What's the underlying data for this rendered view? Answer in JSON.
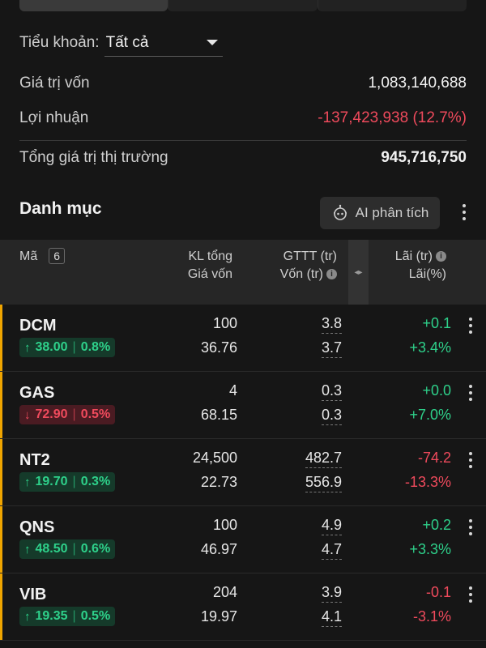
{
  "sub_account": {
    "label": "Tiểu khoản:",
    "value": "Tất cả"
  },
  "summary": {
    "capital_label": "Giá trị vốn",
    "capital_value": "1,083,140,688",
    "profit_label": "Lợi nhuận",
    "profit_value": "-137,423,938 (12.7%)",
    "market_value_label": "Tổng giá trị thị trường",
    "market_value_value": "945,716,750"
  },
  "portfolio": {
    "title": "Danh mục",
    "ai_button_label": "AI phân tích"
  },
  "table_header": {
    "code_label": "Mã",
    "count": "6",
    "qty_label": "KL tổng",
    "cost_label": "Giá vốn",
    "mv_label": "GTTT (tr)",
    "cap_label": "Vốn (tr)",
    "pnl_label": "Lãi (tr)",
    "pct_label": "Lãi(%)"
  },
  "rows": [
    {
      "ticker": "DCM",
      "direction": "up",
      "price": "38.00",
      "change": "0.8%",
      "qty": "100",
      "cost": "36.76",
      "market_value": "3.8",
      "capital": "3.7",
      "pnl": "+0.1",
      "pnl_pct": "+3.4%"
    },
    {
      "ticker": "GAS",
      "direction": "down",
      "price": "72.90",
      "change": "0.5%",
      "qty": "4",
      "cost": "68.15",
      "market_value": "0.3",
      "capital": "0.3",
      "pnl": "+0.0",
      "pnl_pct": "+7.0%"
    },
    {
      "ticker": "NT2",
      "direction": "up",
      "price": "19.70",
      "change": "0.3%",
      "qty": "24,500",
      "cost": "22.73",
      "market_value": "482.7",
      "capital": "556.9",
      "pnl": "-74.2",
      "pnl_pct": "-13.3%"
    },
    {
      "ticker": "QNS",
      "direction": "up",
      "price": "48.50",
      "change": "0.6%",
      "qty": "100",
      "cost": "46.97",
      "market_value": "4.9",
      "capital": "4.7",
      "pnl": "+0.2",
      "pnl_pct": "+3.3%"
    },
    {
      "ticker": "VIB",
      "direction": "up",
      "price": "19.35",
      "change": "0.5%",
      "qty": "204",
      "cost": "19.97",
      "market_value": "3.9",
      "capital": "4.1",
      "pnl": "-0.1",
      "pnl_pct": "-3.1%"
    }
  ],
  "colors": {
    "accent": "#f0a500",
    "up": "#2ed08a",
    "down": "#ef4a5c"
  },
  "icons": {
    "dropdown": "caret-down-icon",
    "ai": "robot-icon",
    "more": "more-vertical-icon",
    "info": "info-icon",
    "resize": "resize-horizontal-icon"
  }
}
